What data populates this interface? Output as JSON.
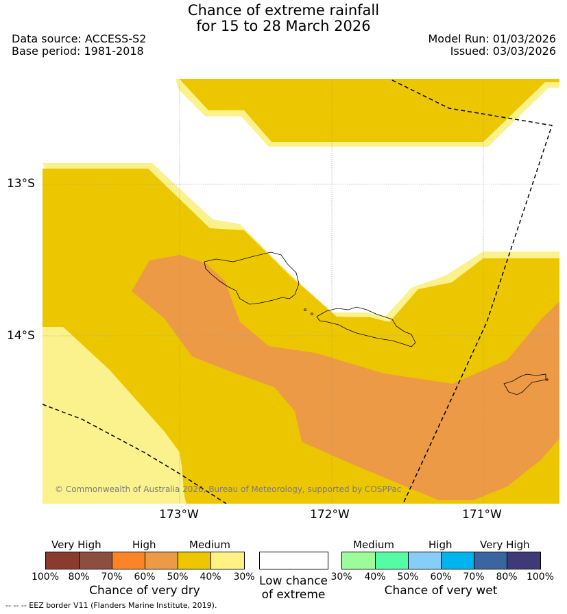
{
  "header": {
    "title_line1": "Chance of extreme rainfall",
    "title_line2": "for 15 to 28 March 2026",
    "data_source": "Data source: ACCESS-S2",
    "base_period": "Base period: 1981-2018",
    "model_run": "Model Run: 01/03/2026",
    "issued": "Issued: 03/03/2026"
  },
  "map": {
    "lat_labels": [
      "13°S",
      "14°S"
    ],
    "lon_labels": [
      "173°W",
      "172°W",
      "171°W"
    ],
    "copyright": "© Commonwealth of Australia 2026, Bureau of Meteorology, supported by COSPPac",
    "colors": {
      "medium_dry": "#ecc700",
      "medium_dry_edge": "#fbf18d",
      "high_dry": "#ec9a45",
      "land_outline": "#000000"
    }
  },
  "legend": {
    "dry": {
      "headers": [
        "Very High",
        "High",
        "Medium"
      ],
      "ticks": [
        "100%",
        "80%",
        "70%",
        "60%",
        "50%",
        "40%",
        "30%"
      ],
      "colors": [
        "#8b3a2f",
        "#8c4e3e",
        "#fd8426",
        "#ec9a45",
        "#ecc700",
        "#fef284"
      ],
      "caption": "Chance of very dry"
    },
    "neutral": {
      "caption_line1": "Low chance",
      "caption_line2": "of extreme",
      "color": "#ffffff"
    },
    "wet": {
      "headers": [
        "Medium",
        "High",
        "Very High"
      ],
      "ticks": [
        "30%",
        "40%",
        "50%",
        "60%",
        "70%",
        "80%",
        "100%"
      ],
      "colors": [
        "#9dfc9a",
        "#55fca6",
        "#87cdf9",
        "#00b4ef",
        "#3a65a0",
        "#3f3978"
      ],
      "caption": "Chance of very wet"
    }
  },
  "footnote": "-- -- -- EEZ border V11 (Flanders Marine Institute, 2019)."
}
